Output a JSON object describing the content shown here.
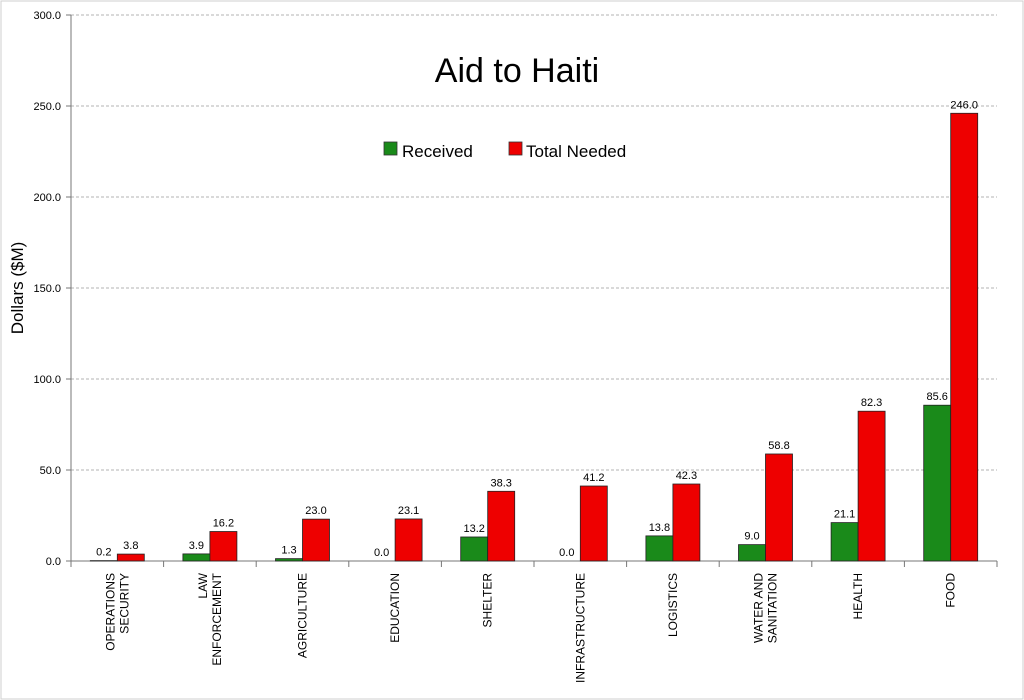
{
  "chart_data": {
    "type": "bar",
    "title": "Aid to Haiti",
    "xlabel": "",
    "ylabel": "Dollars ($M)",
    "ylim": [
      0,
      300
    ],
    "yticks": [
      "0.0",
      "50.0",
      "100.0",
      "150.0",
      "200.0",
      "250.0",
      "300.0"
    ],
    "grid": true,
    "legend_position": "top-center",
    "categories": [
      [
        "OPERATIONS",
        "SECURITY"
      ],
      [
        "LAW",
        "ENFORCEMENT"
      ],
      [
        "AGRICULTURE"
      ],
      [
        "EDUCATION"
      ],
      [
        "SHELTER"
      ],
      [
        "INFRASTRUCTURE"
      ],
      [
        "LOGISTICS"
      ],
      [
        "WATER AND",
        "SANITATION"
      ],
      [
        "HEALTH"
      ],
      [
        "FOOD"
      ]
    ],
    "series": [
      {
        "name": "Received",
        "color": "#1a8a1a",
        "values": [
          0.2,
          3.9,
          1.3,
          0.0,
          13.2,
          0.0,
          13.8,
          9.0,
          21.1,
          85.6
        ],
        "labels": [
          "0.2",
          "3.9",
          "1.3",
          "0.0",
          "13.2",
          "0.0",
          "13.8",
          "9.0",
          "21.1",
          "85.6"
        ]
      },
      {
        "name": "Total Needed",
        "color": "#ee0000",
        "values": [
          3.8,
          16.2,
          23.0,
          23.1,
          38.3,
          41.2,
          42.3,
          58.8,
          82.3,
          246.0
        ],
        "labels": [
          "3.8",
          "16.2",
          "23.0",
          "23.1",
          "38.3",
          "41.2",
          "42.3",
          "58.8",
          "82.3",
          "246.0"
        ]
      }
    ]
  }
}
